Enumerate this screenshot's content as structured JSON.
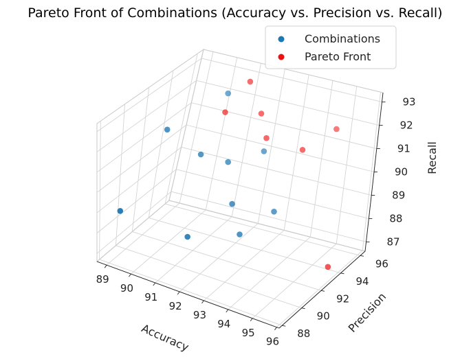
{
  "chart_data": {
    "type": "scatter3d",
    "title": "Pareto Front of Combinations (Accuracy vs. Precision vs. Recall)",
    "xlabel": "Accuracy",
    "ylabel": "Precision",
    "zlabel": "Recall",
    "xlim": [
      88.6,
      96.1
    ],
    "ylim": [
      87.7,
      96.5
    ],
    "zlim": [
      86.6,
      93.4
    ],
    "xticks": [
      89,
      90,
      91,
      92,
      93,
      94,
      95,
      96
    ],
    "yticks": [
      88,
      90,
      92,
      94,
      96
    ],
    "zticks": [
      87,
      88,
      89,
      90,
      91,
      92,
      93
    ],
    "grid": true,
    "legend_position": "top-right",
    "legend": [
      {
        "label": "Combinations",
        "color": "#1f77b4"
      },
      {
        "label": "Pareto Front",
        "color": "#ee1111"
      }
    ],
    "series": [
      {
        "name": "Combinations",
        "color": "#1f77b4",
        "points": [
          [
            89.2,
            88.6,
            89.0
          ],
          [
            89.6,
            91.8,
            91.8
          ],
          [
            90.8,
            92.4,
            90.8
          ],
          [
            91.5,
            89.8,
            88.2
          ],
          [
            90.6,
            94.8,
            92.6
          ],
          [
            91.6,
            93.2,
            90.4
          ],
          [
            92.3,
            92.2,
            89.1
          ],
          [
            92.5,
            94.4,
            90.7
          ],
          [
            92.8,
            91.9,
            88.0
          ],
          [
            93.6,
            93.2,
            88.8
          ]
        ]
      },
      {
        "name": "Pareto Front",
        "color": "#ee1111",
        "points": [
          [
            91.2,
            95.3,
            93.1
          ],
          [
            91.8,
            95.4,
            91.8
          ],
          [
            90.8,
            94.3,
            92.0
          ],
          [
            92.3,
            95.0,
            91.0
          ],
          [
            93.7,
            95.2,
            90.8
          ],
          [
            94.5,
            96.3,
            91.5
          ],
          [
            95.8,
            93.4,
            87.0
          ]
        ]
      }
    ]
  }
}
